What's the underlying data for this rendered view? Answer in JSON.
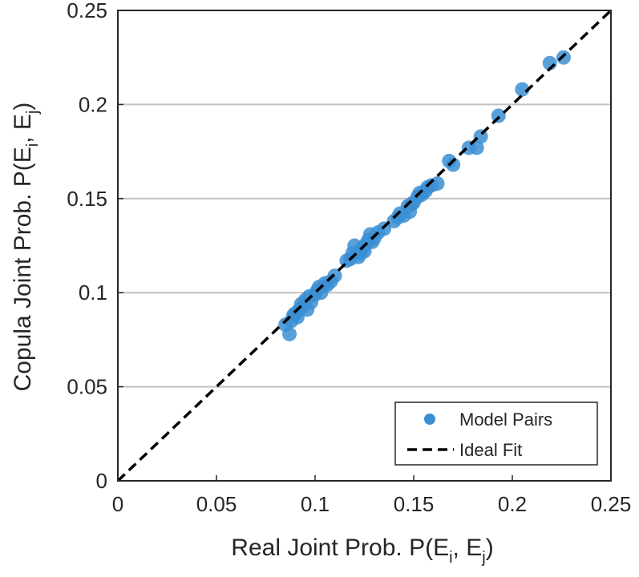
{
  "chart_data": {
    "type": "scatter",
    "xlabel": "Real Joint Prob. P(E",
    "xlabel_sub_i": "i",
    "xlabel_mid": ", E",
    "xlabel_sub_j": "j",
    "xlabel_end": ")",
    "ylabel": "Copula Joint Prob. P(E",
    "ylabel_sub_i": "i",
    "ylabel_mid": ", E",
    "ylabel_sub_j": "j",
    "ylabel_end": ")",
    "xlim": [
      0,
      0.25
    ],
    "ylim": [
      0,
      0.25
    ],
    "x_ticks": [
      "0",
      "0.05",
      "0.1",
      "0.15",
      "0.2",
      "0.25"
    ],
    "y_ticks": [
      "0",
      "0.05",
      "0.1",
      "0.15",
      "0.2",
      "0.25"
    ],
    "y_grid": true,
    "legend_position": "bottom-right",
    "series": [
      {
        "name": "Model Pairs",
        "kind": "scatter",
        "color": "#3b8fd4",
        "points": [
          [
            0.085,
            0.083
          ],
          [
            0.087,
            0.078
          ],
          [
            0.088,
            0.085
          ],
          [
            0.089,
            0.088
          ],
          [
            0.09,
            0.089
          ],
          [
            0.091,
            0.087
          ],
          [
            0.092,
            0.091
          ],
          [
            0.093,
            0.094
          ],
          [
            0.094,
            0.093
          ],
          [
            0.095,
            0.096
          ],
          [
            0.096,
            0.091
          ],
          [
            0.097,
            0.098
          ],
          [
            0.098,
            0.095
          ],
          [
            0.1,
            0.099
          ],
          [
            0.101,
            0.101
          ],
          [
            0.102,
            0.103
          ],
          [
            0.103,
            0.1
          ],
          [
            0.105,
            0.105
          ],
          [
            0.106,
            0.104
          ],
          [
            0.108,
            0.106
          ],
          [
            0.11,
            0.109
          ],
          [
            0.116,
            0.117
          ],
          [
            0.118,
            0.118
          ],
          [
            0.119,
            0.121
          ],
          [
            0.12,
            0.125
          ],
          [
            0.122,
            0.119
          ],
          [
            0.123,
            0.121
          ],
          [
            0.124,
            0.124
          ],
          [
            0.125,
            0.122
          ],
          [
            0.126,
            0.126
          ],
          [
            0.127,
            0.128
          ],
          [
            0.128,
            0.131
          ],
          [
            0.129,
            0.127
          ],
          [
            0.13,
            0.129
          ],
          [
            0.132,
            0.132
          ],
          [
            0.135,
            0.134
          ],
          [
            0.14,
            0.138
          ],
          [
            0.142,
            0.14
          ],
          [
            0.143,
            0.142
          ],
          [
            0.145,
            0.141
          ],
          [
            0.147,
            0.146
          ],
          [
            0.148,
            0.143
          ],
          [
            0.149,
            0.147
          ],
          [
            0.15,
            0.148
          ],
          [
            0.152,
            0.151
          ],
          [
            0.153,
            0.153
          ],
          [
            0.154,
            0.152
          ],
          [
            0.156,
            0.154
          ],
          [
            0.157,
            0.156
          ],
          [
            0.159,
            0.157
          ],
          [
            0.162,
            0.158
          ],
          [
            0.168,
            0.17
          ],
          [
            0.17,
            0.168
          ],
          [
            0.178,
            0.177
          ],
          [
            0.182,
            0.177
          ],
          [
            0.184,
            0.183
          ],
          [
            0.193,
            0.194
          ],
          [
            0.205,
            0.208
          ],
          [
            0.219,
            0.222
          ],
          [
            0.226,
            0.225
          ]
        ]
      },
      {
        "name": "Ideal Fit",
        "kind": "line",
        "style": "dashed",
        "color": "#000000",
        "x": [
          0,
          0.25
        ],
        "y": [
          0,
          0.25
        ]
      }
    ]
  }
}
